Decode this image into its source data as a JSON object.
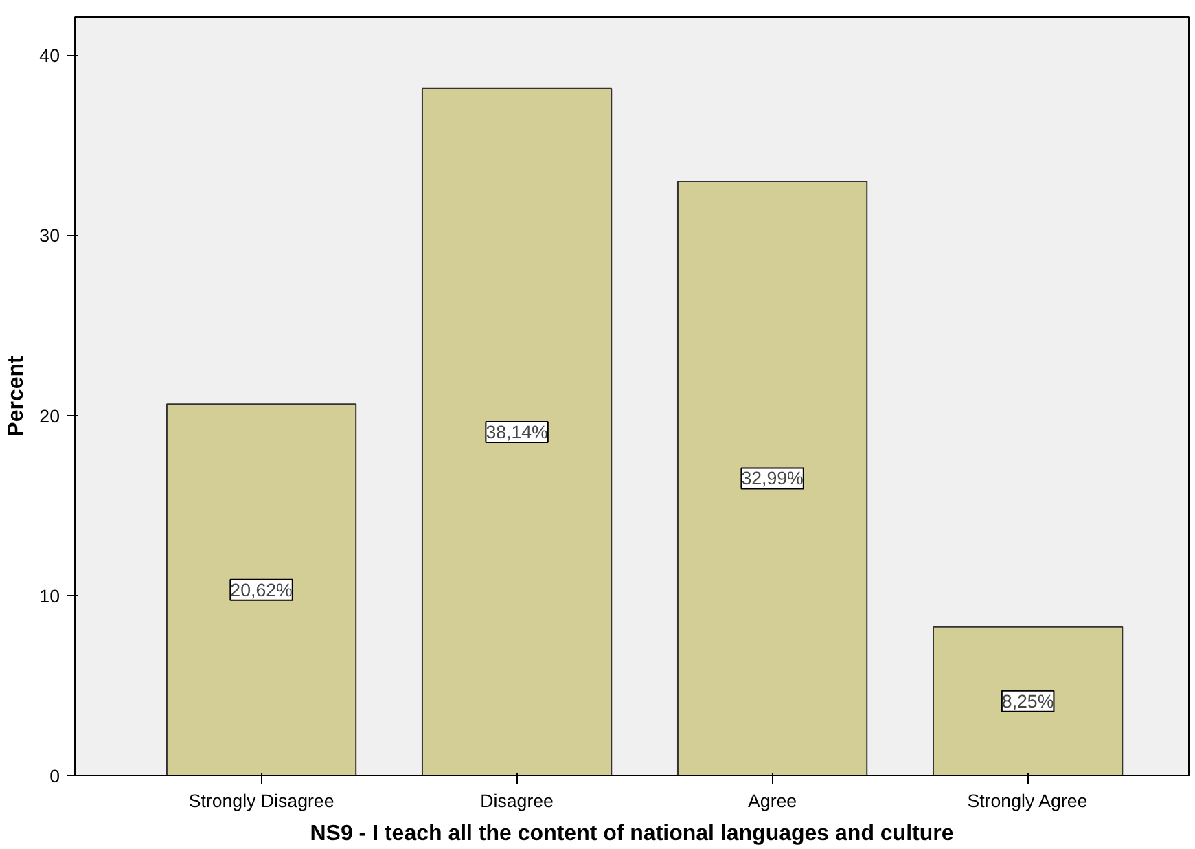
{
  "chart_data": {
    "type": "bar",
    "xlabel": "NS9 - I teach all the content of national languages and culture",
    "ylabel": "Percent",
    "categories": [
      "Strongly Disagree",
      "Disagree",
      "Agree",
      "Strongly Agree"
    ],
    "values": [
      20.62,
      38.14,
      32.99,
      8.25
    ],
    "value_labels": [
      "20,62%",
      "38,14%",
      "32,99%",
      "8,25%"
    ],
    "color": "#d3cd96",
    "ylim": [
      0,
      42.1
    ],
    "yticks": [
      0,
      10,
      20,
      30,
      40
    ],
    "grid": false
  }
}
